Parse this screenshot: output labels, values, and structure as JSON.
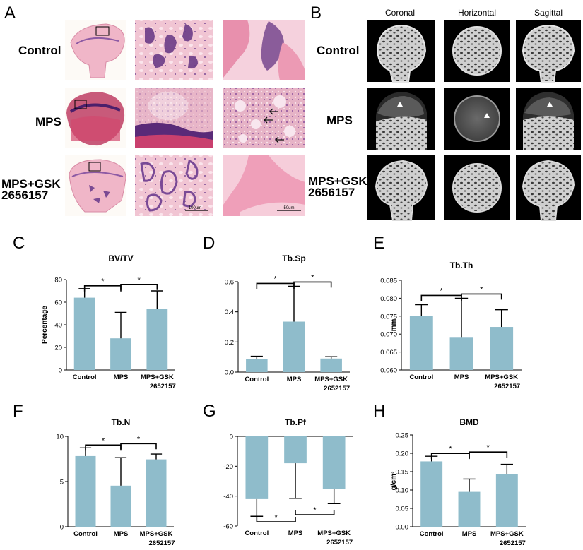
{
  "figure": {
    "histology": {
      "letter": "A",
      "rows": [
        "Control",
        "MPS",
        "MPS+GSK\n2656157"
      ],
      "scale_labels": [
        "100um",
        "50um"
      ]
    },
    "microct": {
      "letter": "B",
      "columns": [
        "Coronal",
        "Horizontal",
        "Sagittal"
      ],
      "rows": [
        "Control",
        "MPS",
        "MPS+GSK\n2656157"
      ]
    }
  },
  "colors": {
    "bar": "#8fbccb",
    "line": "#000000",
    "hist_pink": "#e8a9bd",
    "hist_purple": "#6a3b86",
    "ct_bg": "#000000",
    "ct_bone": "#d9d9d9"
  },
  "chart_data": [
    {
      "letter": "C",
      "type": "bar",
      "title": "BV/TV",
      "ylabel": "Percentage",
      "categories": [
        "Control",
        "MPS",
        "MPS+GSK\n2652157"
      ],
      "values": [
        64,
        28,
        54
      ],
      "errors": [
        8,
        23,
        16
      ],
      "ylim": [
        0,
        80
      ],
      "yticks": [
        "0",
        "20",
        "40",
        "60",
        "80"
      ],
      "significance": [
        "*",
        "*"
      ]
    },
    {
      "letter": "D",
      "type": "bar",
      "title": "Tb.Sp",
      "ylabel": "",
      "categories": [
        "Control",
        "MPS",
        "MPS+GSK\n2652157"
      ],
      "values": [
        0.085,
        0.335,
        0.09
      ],
      "errors": [
        0.02,
        0.235,
        0.012
      ],
      "ylim": [
        0,
        0.6
      ],
      "yticks": [
        "0.0",
        "0.2",
        "0.4",
        "0.6"
      ],
      "significance": [
        "*",
        "*"
      ]
    },
    {
      "letter": "E",
      "type": "bar",
      "title": "Tb.Th",
      "ylabel": "mm",
      "categories": [
        "Control",
        "MPS",
        "MPS+GSK\n2652157"
      ],
      "values": [
        0.075,
        0.069,
        0.072
      ],
      "errors": [
        0.0032,
        0.011,
        0.0048
      ],
      "ylim": [
        0.06,
        0.085
      ],
      "yticks": [
        "0.060",
        "0.065",
        "0.070",
        "0.075",
        "0.080",
        "0.085"
      ],
      "significance": [
        "*",
        "*"
      ]
    },
    {
      "letter": "F",
      "type": "bar",
      "title": "Tb.N",
      "ylabel": "",
      "categories": [
        "Control",
        "MPS",
        "MPS+GSK\n2652157"
      ],
      "values": [
        8.6,
        5.0,
        8.2
      ],
      "errors": [
        1.0,
        3.4,
        0.65
      ],
      "ylim": [
        0,
        11
      ],
      "yticks": [
        "0",
        "5",
        "10"
      ],
      "significance": [
        "*",
        "*"
      ]
    },
    {
      "letter": "G",
      "type": "bar",
      "title": "Tb.Pf",
      "ylabel": "",
      "categories": [
        "Control",
        "MPS",
        "MPS+GSK\n2652157"
      ],
      "values": [
        -42,
        -18,
        -35
      ],
      "errors": [
        11.5,
        23.5,
        10
      ],
      "ylim": [
        -60,
        0
      ],
      "yticks": [
        "-60",
        "-40",
        "-20",
        "0"
      ],
      "significance": [
        "*",
        "*"
      ]
    },
    {
      "letter": "H",
      "type": "bar",
      "title": "BMD",
      "ylabel": "g/cm³",
      "categories": [
        "Control",
        "MPS",
        "MPS+GSK\n2652157"
      ],
      "values": [
        0.178,
        0.095,
        0.143
      ],
      "errors": [
        0.014,
        0.035,
        0.027
      ],
      "ylim": [
        0,
        0.25
      ],
      "yticks": [
        "0.00",
        "0.05",
        "0.10",
        "0.15",
        "0.20",
        "0.25"
      ],
      "significance": [
        "*",
        "*"
      ]
    }
  ]
}
